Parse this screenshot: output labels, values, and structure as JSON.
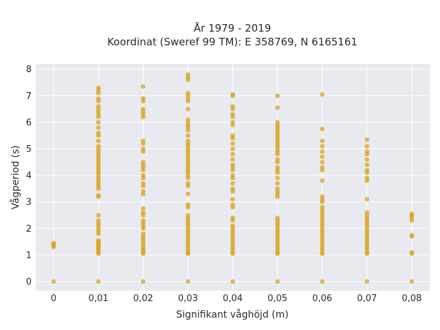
{
  "chart_data": {
    "type": "scatter",
    "title_line1": "År 1979 - 2019",
    "title_line2": "Koordinat (Sweref 99 TM): E 358769, N 6165161",
    "xlabel": "Signifikant våghöjd (m)",
    "ylabel": "Vågperiod (s)",
    "xlim": [
      -0.004,
      0.084
    ],
    "ylim": [
      -0.35,
      8.2
    ],
    "x_ticks": [
      0,
      0.01,
      0.02,
      0.03,
      0.04,
      0.05,
      0.06,
      0.07,
      0.08
    ],
    "x_tick_labels": [
      "0",
      "0,01",
      "0,02",
      "0,03",
      "0,04",
      "0,05",
      "0,06",
      "0,07",
      "0,08"
    ],
    "y_ticks": [
      0,
      1,
      2,
      3,
      4,
      5,
      6,
      7,
      8
    ],
    "y_tick_labels": [
      "0",
      "1",
      "2",
      "3",
      "4",
      "5",
      "6",
      "7",
      "8"
    ],
    "grid": true,
    "point_color": "#d9a520",
    "plot_bg_color": "#e9e9f0",
    "columns": [
      {
        "x": 0,
        "y": [
          0,
          1.3,
          1.35,
          1.4,
          1.45
        ]
      },
      {
        "x": 0.01,
        "y": [
          0,
          1.05,
          1.1,
          1.15,
          1.2,
          1.25,
          1.3,
          1.35,
          1.4,
          1.45,
          1.5,
          1.55,
          1.8,
          1.9,
          2.0,
          2.1,
          2.2,
          2.3,
          2.5,
          3.2,
          3.25,
          3.5,
          3.6,
          3.7,
          3.8,
          3.9,
          4.0,
          4.1,
          4.2,
          4.3,
          4.4,
          4.5,
          4.6,
          4.7,
          4.8,
          4.9,
          5.0,
          5.1,
          5.3,
          5.5,
          5.6,
          5.8,
          6.0,
          6.2,
          6.3,
          6.4,
          6.5,
          6.6,
          6.8,
          6.9,
          7.1,
          7.2,
          7.3
        ]
      },
      {
        "x": 0.02,
        "y": [
          0,
          1.05,
          1.1,
          1.15,
          1.2,
          1.3,
          1.4,
          1.5,
          1.6,
          1.7,
          1.8,
          2.0,
          2.1,
          2.2,
          2.3,
          2.5,
          2.6,
          2.75,
          3.3,
          3.4,
          3.6,
          3.7,
          3.9,
          4.0,
          4.2,
          4.3,
          4.4,
          4.5,
          4.9,
          5.0,
          5.2,
          5.3,
          6.2,
          6.3,
          6.4,
          6.5,
          6.8,
          6.9,
          7.35
        ]
      },
      {
        "x": 0.03,
        "y": [
          0,
          1.05,
          1.1,
          1.2,
          1.3,
          1.4,
          1.5,
          1.6,
          1.7,
          1.8,
          1.9,
          2.0,
          2.1,
          2.2,
          2.3,
          2.4,
          2.5,
          2.8,
          2.9,
          3.3,
          3.6,
          3.7,
          3.9,
          4.0,
          4.1,
          4.2,
          4.3,
          4.4,
          4.5,
          4.6,
          4.7,
          4.8,
          4.9,
          5.0,
          5.1,
          5.2,
          5.3,
          5.5,
          5.7,
          5.8,
          5.9,
          6.0,
          6.1,
          6.5,
          6.8,
          6.9,
          7.0,
          7.1,
          7.6,
          7.7,
          7.8
        ]
      },
      {
        "x": 0.04,
        "y": [
          0,
          1.05,
          1.1,
          1.2,
          1.3,
          1.4,
          1.5,
          1.6,
          1.7,
          1.8,
          1.9,
          2.0,
          2.1,
          2.3,
          2.4,
          2.8,
          2.9,
          3.1,
          3.4,
          3.5,
          3.7,
          3.9,
          4.0,
          4.2,
          4.3,
          4.4,
          4.6,
          4.8,
          5.0,
          5.2,
          5.4,
          5.5,
          5.9,
          6.0,
          6.2,
          6.3,
          6.5,
          6.6,
          7.0,
          7.05
        ]
      },
      {
        "x": 0.05,
        "y": [
          0,
          1.05,
          1.1,
          1.2,
          1.3,
          1.4,
          1.5,
          1.6,
          1.7,
          1.8,
          1.9,
          2.0,
          2.1,
          2.2,
          2.3,
          2.4,
          3.2,
          3.3,
          3.4,
          3.5,
          3.7,
          3.9,
          4.1,
          4.2,
          4.3,
          4.5,
          4.6,
          4.8,
          4.9,
          5.0,
          5.1,
          5.2,
          5.3,
          5.4,
          5.5,
          5.6,
          5.7,
          5.8,
          5.9,
          6.0,
          6.55,
          7.0
        ]
      },
      {
        "x": 0.06,
        "y": [
          0,
          1.05,
          1.1,
          1.2,
          1.3,
          1.4,
          1.5,
          1.6,
          1.7,
          1.8,
          1.9,
          2.0,
          2.1,
          2.2,
          2.3,
          2.4,
          2.5,
          2.6,
          2.7,
          2.8,
          3.0,
          3.1,
          3.2,
          3.8,
          4.2,
          4.3,
          4.5,
          4.7,
          4.9,
          5.1,
          5.3,
          5.75,
          7.05
        ]
      },
      {
        "x": 0.07,
        "y": [
          0,
          1.05,
          1.1,
          1.2,
          1.3,
          1.4,
          1.5,
          1.6,
          1.7,
          1.8,
          1.9,
          2.0,
          2.1,
          2.2,
          2.3,
          2.4,
          2.5,
          2.6,
          3.1,
          3.8,
          3.9,
          4.1,
          4.2,
          4.4,
          4.6,
          4.8,
          4.9,
          5.1,
          5.35
        ]
      },
      {
        "x": 0.08,
        "y": [
          0,
          1.05,
          1.1,
          1.7,
          1.75,
          2.3,
          2.4,
          2.5,
          2.55
        ]
      }
    ]
  }
}
